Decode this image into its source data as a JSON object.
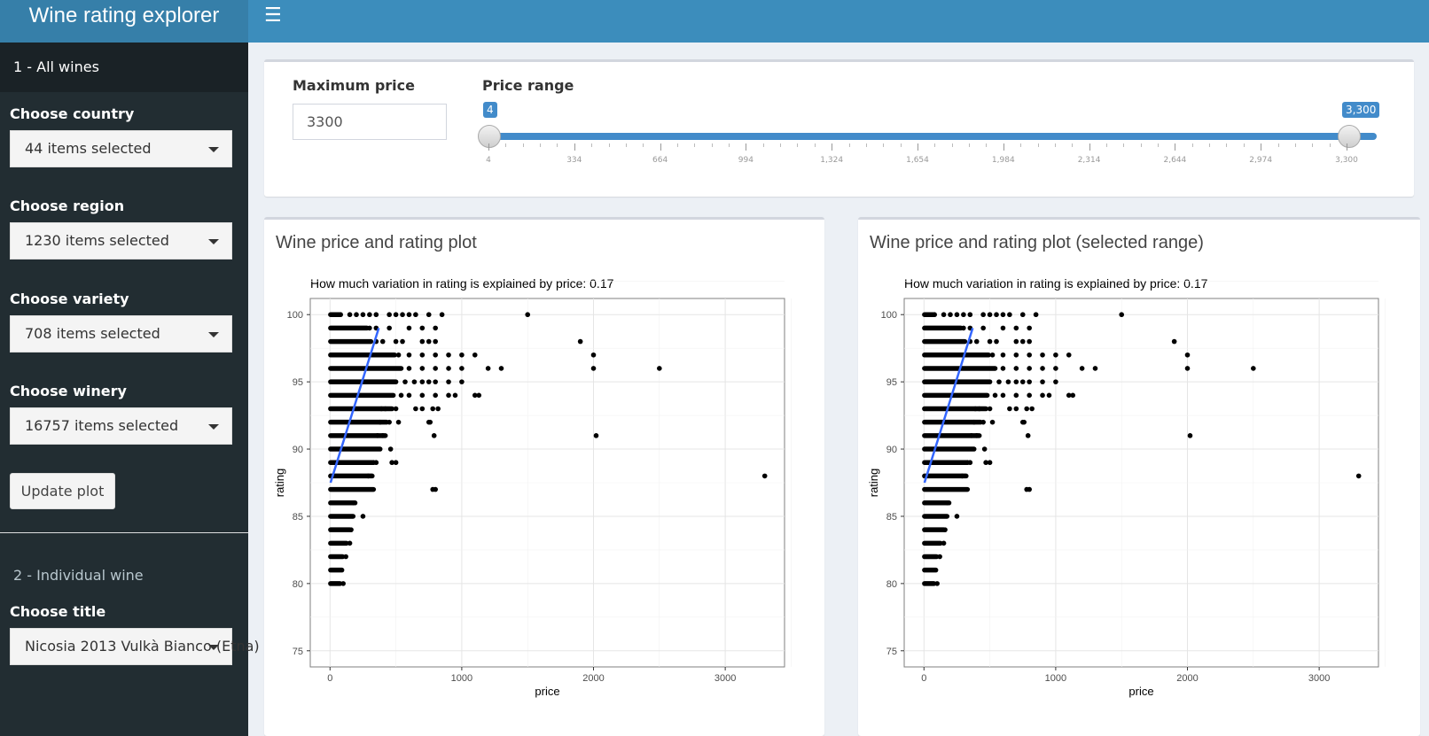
{
  "app": {
    "title": "Wine rating explorer"
  },
  "sidebar": {
    "section1": "1 - All wines",
    "country": {
      "label": "Choose country",
      "value": "44 items selected"
    },
    "region": {
      "label": "Choose region",
      "value": "1230 items selected"
    },
    "variety": {
      "label": "Choose variety",
      "value": "708 items selected"
    },
    "winery": {
      "label": "Choose winery",
      "value": "16757 items selected"
    },
    "update_button": "Update plot",
    "section2": "2 - Individual wine",
    "title_select": {
      "label": "Choose title",
      "value": "Nicosia 2013 Vulkà Bianco (Etna)"
    }
  },
  "filters": {
    "max_price": {
      "label": "Maximum price",
      "value": "3300"
    },
    "price_range": {
      "label": "Price range",
      "min": 4,
      "max": 3300,
      "from": 4,
      "to": 3300,
      "from_label": "4",
      "to_label": "3,300",
      "tick_labels": [
        "4",
        "334",
        "664",
        "994",
        "1,324",
        "1,654",
        "1,984",
        "2,314",
        "2,644",
        "2,974",
        "3,300"
      ]
    }
  },
  "panels": {
    "left_title": "Wine price and rating plot",
    "right_title": "Wine price and rating plot (selected range)"
  },
  "chart_data": [
    {
      "type": "scatter",
      "title": "How much variation in rating is explained by price: 0.17",
      "xlabel": "price",
      "ylabel": "rating",
      "xlim": [
        -150,
        3450
      ],
      "ylim": [
        73.8,
        101.2
      ],
      "xticks": [
        0,
        1000,
        2000,
        3000
      ],
      "yticks": [
        75,
        80,
        85,
        90,
        95,
        100
      ],
      "grid": true,
      "trend_line": {
        "x": [
          4,
          370
        ],
        "y": [
          87.5,
          99.0
        ],
        "color": "#3366ff"
      },
      "bands": [
        {
          "y": 80,
          "xmax": 75
        },
        {
          "y": 81,
          "xmax": 90
        },
        {
          "y": 82,
          "xmax": 95
        },
        {
          "y": 83,
          "xmax": 125
        },
        {
          "y": 84,
          "xmax": 150
        },
        {
          "y": 85,
          "xmax": 175
        },
        {
          "y": 86,
          "xmax": 190
        },
        {
          "y": 87,
          "xmax": 330
        },
        {
          "y": 88,
          "xmax": 320
        },
        {
          "y": 89,
          "xmax": 330
        },
        {
          "y": 90,
          "xmax": 380
        },
        {
          "y": 91,
          "xmax": 420
        },
        {
          "y": 92,
          "xmax": 430
        },
        {
          "y": 93,
          "xmax": 470
        },
        {
          "y": 94,
          "xmax": 480
        },
        {
          "y": 95,
          "xmax": 500
        },
        {
          "y": 96,
          "xmax": 540
        },
        {
          "y": 97,
          "xmax": 490
        },
        {
          "y": 98,
          "xmax": 310
        },
        {
          "y": 99,
          "xmax": 280
        },
        {
          "y": 100,
          "xmax": 70
        }
      ],
      "points": [
        [
          100,
          80
        ],
        [
          120,
          82
        ],
        [
          150,
          83
        ],
        [
          160,
          84
        ],
        [
          250,
          85
        ],
        [
          175,
          86
        ],
        [
          800,
          87
        ],
        [
          780,
          87
        ],
        [
          290,
          88
        ],
        [
          3300,
          88
        ],
        [
          330,
          89
        ],
        [
          350,
          89
        ],
        [
          470,
          89
        ],
        [
          500,
          89
        ],
        [
          460,
          90
        ],
        [
          790,
          91
        ],
        [
          2020,
          91
        ],
        [
          360,
          91
        ],
        [
          400,
          91
        ],
        [
          380,
          92
        ],
        [
          450,
          92
        ],
        [
          520,
          92
        ],
        [
          750,
          92
        ],
        [
          760,
          92
        ],
        [
          390,
          93
        ],
        [
          420,
          93
        ],
        [
          500,
          93
        ],
        [
          650,
          93
        ],
        [
          700,
          93
        ],
        [
          780,
          93
        ],
        [
          820,
          93
        ],
        [
          540,
          94
        ],
        [
          600,
          94
        ],
        [
          700,
          94
        ],
        [
          800,
          94
        ],
        [
          900,
          94
        ],
        [
          950,
          94
        ],
        [
          1100,
          94
        ],
        [
          1130,
          94
        ],
        [
          570,
          95
        ],
        [
          640,
          95
        ],
        [
          700,
          95
        ],
        [
          750,
          95
        ],
        [
          800,
          95
        ],
        [
          900,
          95
        ],
        [
          1000,
          95
        ],
        [
          600,
          96
        ],
        [
          700,
          96
        ],
        [
          800,
          96
        ],
        [
          900,
          96
        ],
        [
          1000,
          96
        ],
        [
          1200,
          96
        ],
        [
          1300,
          96
        ],
        [
          2000,
          96
        ],
        [
          2500,
          96
        ],
        [
          520,
          97
        ],
        [
          600,
          97
        ],
        [
          700,
          97
        ],
        [
          800,
          97
        ],
        [
          900,
          97
        ],
        [
          1000,
          97
        ],
        [
          1100,
          97
        ],
        [
          2000,
          97
        ],
        [
          350,
          98
        ],
        [
          400,
          98
        ],
        [
          500,
          98
        ],
        [
          550,
          98
        ],
        [
          700,
          98
        ],
        [
          750,
          98
        ],
        [
          800,
          98
        ],
        [
          1900,
          98
        ],
        [
          300,
          99
        ],
        [
          350,
          99
        ],
        [
          450,
          99
        ],
        [
          600,
          99
        ],
        [
          700,
          99
        ],
        [
          800,
          99
        ],
        [
          80,
          100
        ],
        [
          150,
          100
        ],
        [
          200,
          100
        ],
        [
          250,
          100
        ],
        [
          300,
          100
        ],
        [
          350,
          100
        ],
        [
          450,
          100
        ],
        [
          500,
          100
        ],
        [
          550,
          100
        ],
        [
          600,
          100
        ],
        [
          650,
          100
        ],
        [
          750,
          100
        ],
        [
          850,
          100
        ],
        [
          1500,
          100
        ]
      ]
    },
    {
      "type": "scatter",
      "title": "How much variation in rating is explained by price: 0.17",
      "xlabel": "price",
      "ylabel": "rating",
      "xlim": [
        -150,
        3450
      ],
      "ylim": [
        73.8,
        101.2
      ],
      "xticks": [
        0,
        1000,
        2000,
        3000
      ],
      "yticks": [
        75,
        80,
        85,
        90,
        95,
        100
      ],
      "grid": true,
      "trend_line": {
        "x": [
          4,
          370
        ],
        "y": [
          87.5,
          99.0
        ],
        "color": "#3366ff"
      },
      "same_as": 0
    }
  ]
}
